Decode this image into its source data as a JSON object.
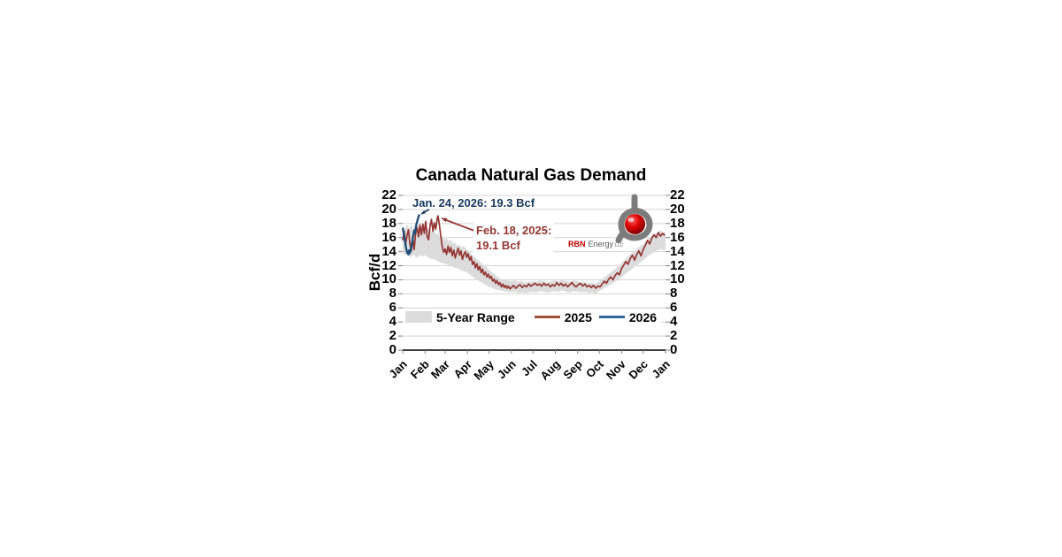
{
  "chart": {
    "title": "Canada Natural Gas Demand",
    "y_axis_label": "Bcf/d",
    "annotations": {
      "blue": {
        "text": "Jan. 24, 2026: 19.3 Bcf",
        "color": "#17375D"
      },
      "red": {
        "line1": "Feb. 18, 2025:",
        "line2": "19.1 Bcf",
        "color": "#943634"
      }
    },
    "legend": [
      {
        "label": "5-Year Range",
        "swatch": "band",
        "color": "#DCDCDC"
      },
      {
        "label": "2025",
        "swatch": "line",
        "color": "#A0523F"
      },
      {
        "label": "2026",
        "swatch": "line",
        "color": "#31679B"
      }
    ],
    "logo": {
      "brand_red": "RBN",
      "brand_gray": "Energy",
      "brand_suffix": "LLC",
      "red": "#C00000",
      "gray": "#5A5A5A",
      "tube": "#7C7C7C"
    }
  },
  "chart_data": {
    "type": "line",
    "title": "Canada Natural Gas Demand",
    "xlabel": "",
    "ylabel": "Bcf/d",
    "ylim": [
      0,
      22
    ],
    "yticks": [
      0,
      2,
      4,
      6,
      8,
      10,
      12,
      14,
      16,
      18,
      20,
      22
    ],
    "x_unit": "day of year (Jan through following Jan)",
    "x_months": [
      "Jan",
      "Feb",
      "Mar",
      "Apr",
      "May",
      "Jun",
      "Jul",
      "Aug",
      "Sep",
      "Oct",
      "Nov",
      "Dec",
      "Jan"
    ],
    "month_start_days": [
      0,
      31,
      59,
      90,
      120,
      151,
      181,
      212,
      243,
      273,
      304,
      334,
      365
    ],
    "grid": "horizontal",
    "legend_position": "inside-bottom",
    "callouts": [
      {
        "date": "Jan. 24, 2026",
        "value_bcf": 19.3,
        "series": "2026"
      },
      {
        "date": "Feb. 18, 2025",
        "value_bcf": 19.1,
        "series": "2025"
      }
    ],
    "series": [
      {
        "name": "5-Year Range",
        "type": "band",
        "color": "#DCDCDC",
        "points": [
          [
            0,
            13.9,
            17.7
          ],
          [
            3,
            13.5,
            17.1
          ],
          [
            6,
            13.8,
            17.9
          ],
          [
            9,
            13.4,
            17.3
          ],
          [
            12,
            13.2,
            17.8
          ],
          [
            15,
            13.6,
            17.2
          ],
          [
            18,
            13.3,
            18.0
          ],
          [
            21,
            13.1,
            17.5
          ],
          [
            24,
            13.6,
            17.9
          ],
          [
            27,
            13.3,
            17.4
          ],
          [
            31,
            13.5,
            17.8
          ],
          [
            34,
            13.3,
            17.1
          ],
          [
            37,
            13.1,
            17.4
          ],
          [
            40,
            12.9,
            16.8
          ],
          [
            43,
            13.0,
            17.0
          ],
          [
            46,
            12.8,
            16.5
          ],
          [
            49,
            12.6,
            16.6
          ],
          [
            52,
            12.5,
            16.0
          ],
          [
            55,
            12.4,
            16.2
          ],
          [
            58,
            12.3,
            15.7
          ],
          [
            61,
            12.2,
            15.9
          ],
          [
            64,
            12.1,
            15.5
          ],
          [
            67,
            12.0,
            15.7
          ],
          [
            70,
            11.8,
            15.1
          ],
          [
            73,
            11.7,
            15.3
          ],
          [
            76,
            11.6,
            14.8
          ],
          [
            79,
            11.5,
            15.0
          ],
          [
            82,
            11.3,
            14.6
          ],
          [
            85,
            11.2,
            14.8
          ],
          [
            88,
            11.1,
            14.4
          ],
          [
            91,
            10.9,
            14.2
          ],
          [
            95,
            10.6,
            13.7
          ],
          [
            100,
            10.2,
            13.2
          ],
          [
            105,
            9.9,
            12.8
          ],
          [
            110,
            9.6,
            12.3
          ],
          [
            115,
            9.3,
            11.9
          ],
          [
            120,
            9.0,
            11.4
          ],
          [
            125,
            8.8,
            11.0
          ],
          [
            130,
            8.6,
            10.6
          ],
          [
            135,
            8.5,
            10.2
          ],
          [
            140,
            8.4,
            10.0
          ],
          [
            145,
            8.3,
            9.9
          ],
          [
            151,
            8.2,
            9.8
          ],
          [
            156,
            8.3,
            9.9
          ],
          [
            161,
            8.1,
            9.7
          ],
          [
            166,
            8.2,
            9.8
          ],
          [
            171,
            8.1,
            9.6
          ],
          [
            176,
            8.2,
            9.7
          ],
          [
            181,
            8.3,
            9.8
          ],
          [
            186,
            8.2,
            9.7
          ],
          [
            191,
            8.4,
            9.9
          ],
          [
            196,
            8.3,
            9.8
          ],
          [
            201,
            8.2,
            9.6
          ],
          [
            206,
            8.3,
            9.8
          ],
          [
            212,
            8.4,
            9.9
          ],
          [
            217,
            8.3,
            9.8
          ],
          [
            222,
            8.5,
            10.0
          ],
          [
            227,
            8.3,
            9.8
          ],
          [
            232,
            8.2,
            9.7
          ],
          [
            237,
            8.4,
            9.9
          ],
          [
            243,
            8.3,
            9.8
          ],
          [
            248,
            8.2,
            9.6
          ],
          [
            253,
            8.3,
            9.7
          ],
          [
            258,
            8.1,
            9.5
          ],
          [
            263,
            8.2,
            9.6
          ],
          [
            268,
            8.0,
            9.4
          ],
          [
            273,
            8.4,
            9.8
          ],
          [
            278,
            8.7,
            10.2
          ],
          [
            283,
            9.0,
            10.6
          ],
          [
            288,
            9.3,
            11.0
          ],
          [
            293,
            9.6,
            11.4
          ],
          [
            298,
            9.9,
            11.8
          ],
          [
            304,
            10.4,
            12.4
          ],
          [
            309,
            10.8,
            12.9
          ],
          [
            314,
            11.2,
            13.5
          ],
          [
            319,
            11.6,
            13.9
          ],
          [
            324,
            12.0,
            14.3
          ],
          [
            329,
            12.4,
            14.7
          ],
          [
            334,
            12.8,
            15.1
          ],
          [
            339,
            13.2,
            15.6
          ],
          [
            344,
            13.6,
            16.1
          ],
          [
            349,
            13.9,
            16.5
          ],
          [
            354,
            14.2,
            16.8
          ],
          [
            359,
            14.4,
            17.0
          ],
          [
            362,
            14.2,
            16.7
          ],
          [
            365,
            14.3,
            16.9
          ]
        ]
      },
      {
        "name": "2025",
        "type": "line",
        "color": "#943634",
        "width": 1.7,
        "points": [
          [
            0,
            15.6
          ],
          [
            2,
            16.9
          ],
          [
            4,
            15.0
          ],
          [
            6,
            16.3
          ],
          [
            8,
            17.1
          ],
          [
            10,
            15.2
          ],
          [
            12,
            14.1
          ],
          [
            14,
            15.9
          ],
          [
            16,
            14.3
          ],
          [
            18,
            16.6
          ],
          [
            20,
            17.4
          ],
          [
            22,
            16.1
          ],
          [
            24,
            17.8
          ],
          [
            26,
            16.4
          ],
          [
            28,
            17.9
          ],
          [
            30,
            16.6
          ],
          [
            32,
            18.3
          ],
          [
            34,
            16.1
          ],
          [
            36,
            15.7
          ],
          [
            38,
            17.6
          ],
          [
            40,
            18.6
          ],
          [
            42,
            16.9
          ],
          [
            44,
            18.1
          ],
          [
            46,
            17.2
          ],
          [
            48,
            18.8
          ],
          [
            49,
            19.1
          ],
          [
            51,
            17.8
          ],
          [
            53,
            16.2
          ],
          [
            55,
            14.6
          ],
          [
            57,
            13.9
          ],
          [
            59,
            14.4
          ],
          [
            61,
            13.6
          ],
          [
            63,
            14.8
          ],
          [
            65,
            13.9
          ],
          [
            67,
            14.6
          ],
          [
            69,
            13.4
          ],
          [
            71,
            14.2
          ],
          [
            73,
            13.1
          ],
          [
            75,
            13.8
          ],
          [
            77,
            14.5
          ],
          [
            79,
            13.5
          ],
          [
            81,
            14.1
          ],
          [
            83,
            12.9
          ],
          [
            85,
            13.6
          ],
          [
            87,
            14.0
          ],
          [
            89,
            13.2
          ],
          [
            91,
            13.7
          ],
          [
            93,
            12.8
          ],
          [
            95,
            13.3
          ],
          [
            97,
            12.2
          ],
          [
            99,
            12.6
          ],
          [
            101,
            11.7
          ],
          [
            103,
            12.3
          ],
          [
            105,
            11.4
          ],
          [
            107,
            11.9
          ],
          [
            109,
            11.0
          ],
          [
            111,
            11.5
          ],
          [
            113,
            10.7
          ],
          [
            115,
            11.1
          ],
          [
            117,
            10.4
          ],
          [
            119,
            10.8
          ],
          [
            121,
            10.2
          ],
          [
            123,
            10.5
          ],
          [
            125,
            9.8
          ],
          [
            127,
            10.1
          ],
          [
            129,
            9.5
          ],
          [
            131,
            9.9
          ],
          [
            133,
            9.3
          ],
          [
            135,
            9.6
          ],
          [
            137,
            9.0
          ],
          [
            139,
            9.4
          ],
          [
            141,
            8.9
          ],
          [
            143,
            9.2
          ],
          [
            145,
            8.8
          ],
          [
            147,
            9.1
          ],
          [
            149,
            8.7
          ],
          [
            151,
            8.9
          ],
          [
            154,
            9.2
          ],
          [
            157,
            8.8
          ],
          [
            160,
            9.1
          ],
          [
            163,
            9.3
          ],
          [
            166,
            8.9
          ],
          [
            169,
            9.2
          ],
          [
            172,
            9.0
          ],
          [
            175,
            9.4
          ],
          [
            178,
            9.1
          ],
          [
            181,
            9.3
          ],
          [
            184,
            9.5
          ],
          [
            187,
            9.2
          ],
          [
            190,
            9.4
          ],
          [
            193,
            9.1
          ],
          [
            196,
            9.5
          ],
          [
            199,
            9.2
          ],
          [
            202,
            9.4
          ],
          [
            205,
            9.0
          ],
          [
            208,
            9.3
          ],
          [
            211,
            9.1
          ],
          [
            214,
            9.6
          ],
          [
            217,
            9.2
          ],
          [
            220,
            9.5
          ],
          [
            223,
            9.1
          ],
          [
            226,
            9.4
          ],
          [
            229,
            9.0
          ],
          [
            232,
            9.3
          ],
          [
            235,
            9.6
          ],
          [
            238,
            9.2
          ],
          [
            241,
            9.0
          ],
          [
            244,
            9.3
          ],
          [
            247,
            9.5
          ],
          [
            250,
            9.1
          ],
          [
            253,
            9.4
          ],
          [
            256,
            9.0
          ],
          [
            259,
            9.2
          ],
          [
            262,
            8.9
          ],
          [
            265,
            9.2
          ],
          [
            268,
            8.8
          ],
          [
            271,
            9.1
          ],
          [
            274,
            9.0
          ],
          [
            277,
            9.4
          ],
          [
            280,
            9.8
          ],
          [
            283,
            9.5
          ],
          [
            286,
            10.1
          ],
          [
            289,
            10.4
          ],
          [
            292,
            10.0
          ],
          [
            295,
            10.6
          ],
          [
            298,
            11.0
          ],
          [
            301,
            10.7
          ],
          [
            304,
            11.6
          ],
          [
            307,
            12.1
          ],
          [
            310,
            12.6
          ],
          [
            313,
            12.2
          ],
          [
            316,
            13.0
          ],
          [
            319,
            13.5
          ],
          [
            322,
            12.8
          ],
          [
            325,
            13.6
          ],
          [
            328,
            14.1
          ],
          [
            331,
            13.4
          ],
          [
            334,
            14.3
          ],
          [
            337,
            14.9
          ],
          [
            340,
            15.6
          ],
          [
            343,
            15.1
          ],
          [
            346,
            15.9
          ],
          [
            349,
            16.4
          ],
          [
            352,
            16.0
          ],
          [
            355,
            16.7
          ],
          [
            358,
            16.2
          ],
          [
            361,
            16.6
          ],
          [
            364,
            16.3
          ]
        ]
      },
      {
        "name": "2026",
        "type": "line",
        "color": "#1F4E79",
        "width": 2.3,
        "points": [
          [
            0,
            17.4
          ],
          [
            2,
            16.3
          ],
          [
            4,
            14.9
          ],
          [
            6,
            13.9
          ],
          [
            8,
            13.6
          ],
          [
            9,
            14.2
          ],
          [
            10,
            13.8
          ],
          [
            12,
            14.6
          ],
          [
            14,
            15.9
          ],
          [
            16,
            17.0
          ],
          [
            17,
            16.6
          ],
          [
            19,
            17.9
          ],
          [
            21,
            18.6
          ],
          [
            23,
            19.3
          ]
        ]
      }
    ],
    "style": {
      "gridline_color": "#D4D4D4",
      "axis_color": "#3F3F3F",
      "tick_color": "#7F7F7F"
    }
  }
}
